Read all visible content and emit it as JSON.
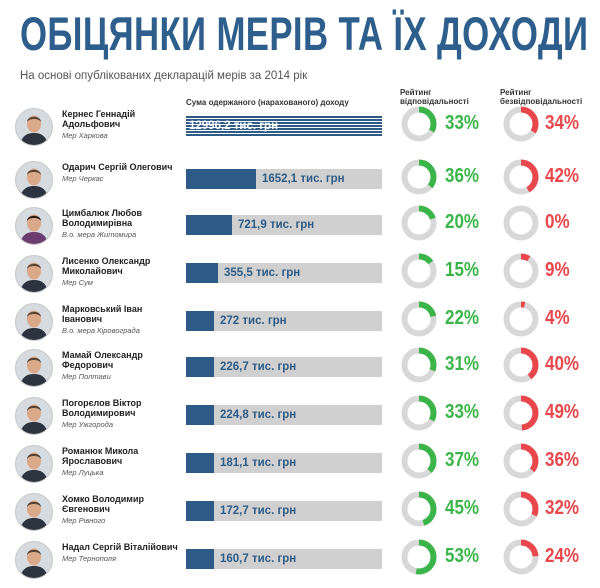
{
  "header": {
    "title": "ОБІЦЯНКИ МЕРІВ ТА ЇХ ДОХОДИ",
    "subtitle": "На основі опублікованих декларацій мерів за 2014 рік"
  },
  "columns": {
    "income": "Сума одержаного (нарахованого) доходу",
    "responsibility": "Рейтинг відповідальності",
    "irresponsibility": "Рейтинг безвідповідальності"
  },
  "colors": {
    "title": "#2d5e8c",
    "bar_fill": "#2e5b86",
    "bar_track": "#d0d0d0",
    "responsibility": "#3bb54a",
    "irresponsibility": "#e8474b",
    "ring_track": "#d8d8d8"
  },
  "mayors": [
    {
      "name": "Кернес Геннадій Адольфович",
      "role": "Мер Харкова",
      "income_label": "12996,2 тис. грн",
      "income": 12996.2,
      "responsibility_label": "33%",
      "responsibility": 33,
      "irresponsibility_label": "34%",
      "irresponsibility": 34
    },
    {
      "name": "Одарич Сергій Олегович",
      "role": "Мер Черкас",
      "income_label": "1652,1 тис. грн",
      "income": 1652.1,
      "responsibility_label": "36%",
      "responsibility": 36,
      "irresponsibility_label": "42%",
      "irresponsibility": 42
    },
    {
      "name": "Цимбалюк Любов Володимирівна",
      "role": "В.о. мера Житомира",
      "income_label": "721,9 тис. грн",
      "income": 721.9,
      "responsibility_label": "20%",
      "responsibility": 20,
      "irresponsibility_label": "0%",
      "irresponsibility": 0
    },
    {
      "name": "Лисенко Олександр Миколайович",
      "role": "Мер Сум",
      "income_label": "355,5 тис. грн",
      "income": 355.5,
      "responsibility_label": "15%",
      "responsibility": 15,
      "irresponsibility_label": "9%",
      "irresponsibility": 9
    },
    {
      "name": "Марковський Іван Іванович",
      "role": "В.о. мера Кіровограда",
      "income_label": "272 тис. грн",
      "income": 272,
      "responsibility_label": "22%",
      "responsibility": 22,
      "irresponsibility_label": "4%",
      "irresponsibility": 4
    },
    {
      "name": "Мамай Олександр Федорович",
      "role": "Мер Полтави",
      "income_label": "226,7 тис. грн",
      "income": 226.7,
      "responsibility_label": "31%",
      "responsibility": 31,
      "irresponsibility_label": "40%",
      "irresponsibility": 40
    },
    {
      "name": "Погорєлов Віктор Володимирович",
      "role": "Мер Ужгорода",
      "income_label": "224,8 тис. грн",
      "income": 224.8,
      "responsibility_label": "33%",
      "responsibility": 33,
      "irresponsibility_label": "49%",
      "irresponsibility": 49
    },
    {
      "name": "Романюк Микола Ярославович",
      "role": "Мер Луцька",
      "income_label": "181,1 тис. грн",
      "income": 181.1,
      "responsibility_label": "37%",
      "responsibility": 37,
      "irresponsibility_label": "36%",
      "irresponsibility": 36
    },
    {
      "name": "Хомко Володимир Євгенович",
      "role": "Мер Рівного",
      "income_label": "172,7 тис. грн",
      "income": 172.7,
      "responsibility_label": "45%",
      "responsibility": 45,
      "irresponsibility_label": "32%",
      "irresponsibility": 32
    },
    {
      "name": "Надал Сергій Віталійович",
      "role": "Мер Тернополя",
      "income_label": "160,7 тис. грн",
      "income": 160.7,
      "responsibility_label": "53%",
      "responsibility": 53,
      "irresponsibility_label": "24%",
      "irresponsibility": 24
    }
  ],
  "chart_data": {
    "type": "bar",
    "title": "ОБІЦЯНКИ МЕРІВ ТА ЇХ ДОХОДИ",
    "subtitle": "На основі опублікованих декларацій мерів за 2014 рік",
    "categories": [
      "Кернес Геннадій Адольфович",
      "Одарич Сергій Олегович",
      "Цимбалюк Любов Володимирівна",
      "Лисенко Олександр Миколайович",
      "Марковський Іван Іванович",
      "Мамай Олександр Федорович",
      "Погорєлов Віктор Володимирович",
      "Романюк Микола Ярославович",
      "Хомко Володимир Євгенович",
      "Надал Сергій Віталійович"
    ],
    "series": [
      {
        "name": "Сума одержаного (нарахованого) доходу",
        "values": [
          12996.2,
          1652.1,
          721.9,
          355.5,
          272,
          226.7,
          224.8,
          181.1,
          172.7,
          160.7
        ]
      },
      {
        "name": "Рейтинг відповідальності",
        "values": [
          33,
          36,
          20,
          15,
          22,
          31,
          33,
          37,
          45,
          53
        ]
      },
      {
        "name": "Рейтинг безвідповідальності",
        "values": [
          34,
          42,
          0,
          9,
          4,
          40,
          49,
          36,
          32,
          24
        ]
      }
    ]
  }
}
